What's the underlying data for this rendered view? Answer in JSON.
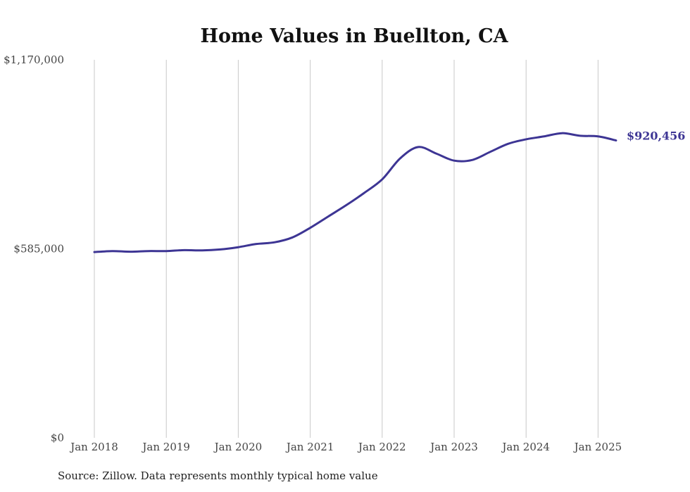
{
  "chart_data": {
    "type": "line",
    "title": "Home Values in Buellton, CA",
    "xlabel": "",
    "ylabel": "",
    "ylim": [
      0,
      1170000
    ],
    "yticks": [
      {
        "value": 0,
        "label": "$0"
      },
      {
        "value": 585000,
        "label": "$585,000"
      },
      {
        "value": 1170000,
        "label": "$1,170,000"
      }
    ],
    "xlim": [
      2018.0,
      2025.25
    ],
    "xticks": [
      {
        "value": 2018,
        "label": "Jan 2018"
      },
      {
        "value": 2019,
        "label": "Jan 2019"
      },
      {
        "value": 2020,
        "label": "Jan 2020"
      },
      {
        "value": 2021,
        "label": "Jan 2021"
      },
      {
        "value": 2022,
        "label": "Jan 2022"
      },
      {
        "value": 2023,
        "label": "Jan 2023"
      },
      {
        "value": 2024,
        "label": "Jan 2024"
      },
      {
        "value": 2025,
        "label": "Jan 2025"
      }
    ],
    "grid": "vertical",
    "line_color": "#3d3594",
    "series": [
      {
        "points": [
          [
            2018.0,
            575000
          ],
          [
            2018.25,
            578000
          ],
          [
            2018.5,
            576000
          ],
          [
            2018.75,
            578000
          ],
          [
            2019.0,
            578000
          ],
          [
            2019.25,
            581000
          ],
          [
            2019.5,
            580000
          ],
          [
            2019.75,
            583000
          ],
          [
            2020.0,
            590000
          ],
          [
            2020.25,
            600000
          ],
          [
            2020.5,
            605000
          ],
          [
            2020.75,
            620000
          ],
          [
            2021.0,
            650000
          ],
          [
            2021.25,
            685000
          ],
          [
            2021.5,
            720000
          ],
          [
            2021.75,
            758000
          ],
          [
            2022.0,
            800000
          ],
          [
            2022.25,
            865000
          ],
          [
            2022.5,
            900000
          ],
          [
            2022.75,
            880000
          ],
          [
            2023.0,
            858000
          ],
          [
            2023.25,
            860000
          ],
          [
            2023.5,
            885000
          ],
          [
            2023.75,
            910000
          ],
          [
            2024.0,
            924000
          ],
          [
            2024.25,
            933000
          ],
          [
            2024.5,
            943000
          ],
          [
            2024.75,
            935000
          ],
          [
            2025.0,
            933000
          ],
          [
            2025.25,
            920456
          ]
        ]
      }
    ],
    "end_label": "$920,456"
  },
  "source": "Source: Zillow. Data represents monthly typical home value"
}
